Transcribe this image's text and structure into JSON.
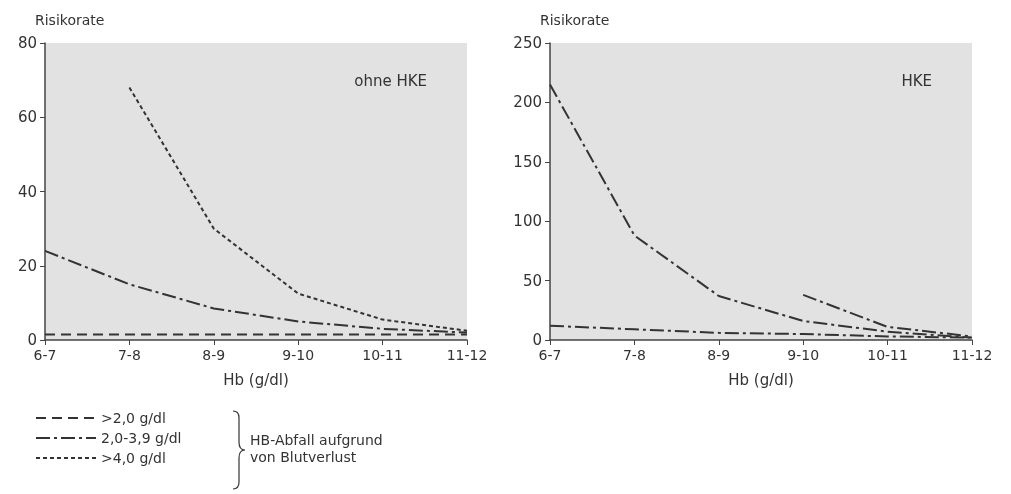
{
  "chart_data": [
    {
      "type": "line",
      "categories": [
        "6-7",
        "7-8",
        "8-9",
        "9-10",
        "10-11",
        "11-12"
      ],
      "xlabel": "Hb (g/dl)",
      "ylabel": "Risikorate",
      "ylim": [
        0,
        80
      ],
      "yticks": [
        0,
        20,
        40,
        60,
        80
      ],
      "grid": false,
      "legend": "bottom left",
      "legend_title": "HB-Abfall aufgrund von Blutverlust",
      "annotations": [
        "ohne HKE"
      ],
      "marker": "none",
      "series": [
        {
          "name": ">2,0 g/dl",
          "color": "#333333",
          "line_style": "dashed",
          "values": [
            1.5,
            1.5,
            1.5,
            1.5,
            1.5,
            1.5
          ]
        },
        {
          "name": "2,0-3,9 g/dl",
          "color": "#333333",
          "line_style": "dashdot",
          "values": [
            24,
            15,
            8.5,
            5,
            3,
            2
          ]
        },
        {
          "name": ">4,0 g/dl",
          "color": "#333333",
          "line_style": "dotted",
          "values": [
            null,
            68,
            30,
            12.5,
            5.5,
            2.5
          ]
        }
      ]
    },
    {
      "type": "line",
      "categories": [
        "6-7",
        "7-8",
        "8-9",
        "9-10",
        "10-11",
        "11-12"
      ],
      "xlabel": "Hb (g/dl)",
      "ylabel": "Risikorate",
      "ylim": [
        0,
        250
      ],
      "yticks": [
        0,
        50,
        100,
        150,
        200,
        250
      ],
      "grid": false,
      "legend": false,
      "annotations": [
        "HKE"
      ],
      "marker": "none",
      "series": [
        {
          "color": "#333333",
          "line_style": "dashdot",
          "values": [
            12,
            9,
            6,
            5,
            3,
            2
          ]
        },
        {
          "color": "#333333",
          "line_style": "dashdot",
          "values": [
            215,
            88,
            37,
            16,
            7,
            2
          ]
        },
        {
          "color": "#333333",
          "line_style": "dashdot",
          "values": [
            null,
            null,
            null,
            38,
            11,
            3
          ]
        }
      ]
    }
  ]
}
